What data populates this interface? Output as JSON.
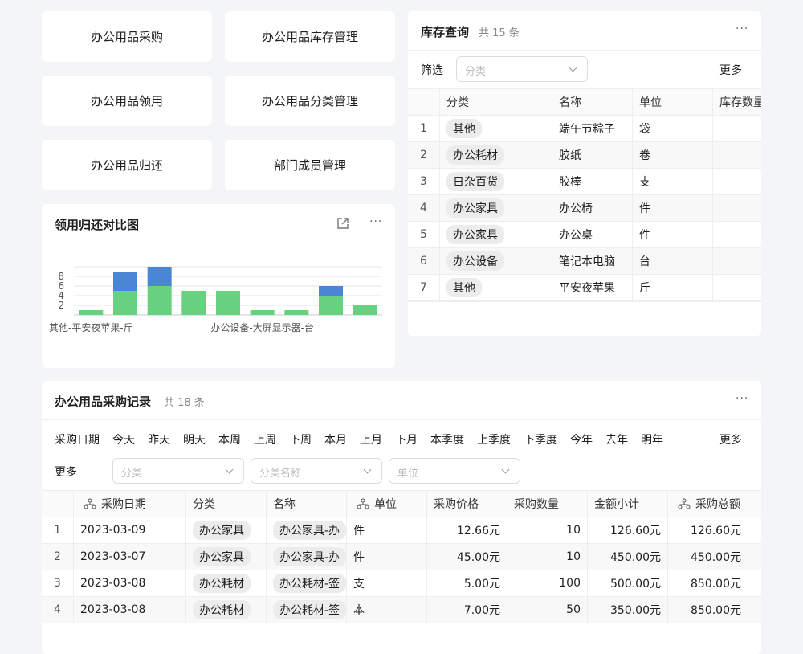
{
  "nav_buttons": [
    "办公用品采购",
    "办公用品库存管理",
    "办公用品领用",
    "办公用品分类管理",
    "办公用品归还",
    "部门成员管理"
  ],
  "chart_card": {
    "title": "领用归还对比图",
    "type": "bar",
    "ylim": [
      0,
      10
    ],
    "yticks": [
      2,
      4,
      6,
      8
    ],
    "categories": [
      "其他-平安夜苹果-斤",
      null,
      null,
      null,
      null,
      "办公设备-大屏显示器-台",
      null,
      null,
      null
    ],
    "series": [
      {
        "color": "#66d17e",
        "values": [
          1,
          5,
          6,
          5,
          5,
          1,
          1,
          4,
          2
        ]
      },
      {
        "color": "#4a86d4",
        "values": [
          0,
          4,
          4,
          0,
          0,
          0,
          0,
          2,
          0
        ]
      }
    ]
  },
  "inventory": {
    "title": "库存查询",
    "count": "共 15 条",
    "filter_label": "筛选",
    "filter_placeholder": "分类",
    "more": "更多",
    "columns": [
      "分类",
      "名称",
      "单位",
      "库存数量"
    ],
    "rows": [
      [
        "1",
        "其他",
        "端午节粽子",
        "袋"
      ],
      [
        "2",
        "办公耗材",
        "胶纸",
        "卷"
      ],
      [
        "3",
        "日杂百货",
        "胶棒",
        "支"
      ],
      [
        "4",
        "办公家具",
        "办公椅",
        "件"
      ],
      [
        "5",
        "办公家具",
        "办公桌",
        "件"
      ],
      [
        "6",
        "办公设备",
        "笔记本电脑",
        "台"
      ],
      [
        "7",
        "其他",
        "平安夜苹果",
        "斤"
      ]
    ]
  },
  "purchases": {
    "title": "办公用品采购记录",
    "count": "共 18 条",
    "date_label": "采购日期",
    "date_options": [
      "今天",
      "昨天",
      "明天",
      "本周",
      "上周",
      "下周",
      "本月",
      "上月",
      "下月",
      "本季度",
      "上季度",
      "下季度",
      "今年",
      "去年",
      "明年"
    ],
    "more": "更多",
    "filter_label": "更多",
    "filters": [
      "分类",
      "分类名称",
      "单位"
    ],
    "columns": [
      "采购日期",
      "分类",
      "名称",
      "单位",
      "采购价格",
      "采购数量",
      "金额小计",
      "采购总额"
    ],
    "rows": [
      [
        "1",
        "2023-03-09",
        "办公家具",
        "办公家具-办",
        "件",
        "12.66元",
        "10",
        "126.60元",
        "126.60元"
      ],
      [
        "2",
        "2023-03-07",
        "办公家具",
        "办公家具-办",
        "件",
        "45.00元",
        "10",
        "450.00元",
        "450.00元"
      ],
      [
        "3",
        "2023-03-08",
        "办公耗材",
        "办公耗材-签",
        "支",
        "5.00元",
        "100",
        "500.00元",
        "850.00元"
      ],
      [
        "4",
        "2023-03-08",
        "办公耗材",
        "办公耗材-签",
        "本",
        "7.00元",
        "50",
        "350.00元",
        "850.00元"
      ]
    ]
  }
}
